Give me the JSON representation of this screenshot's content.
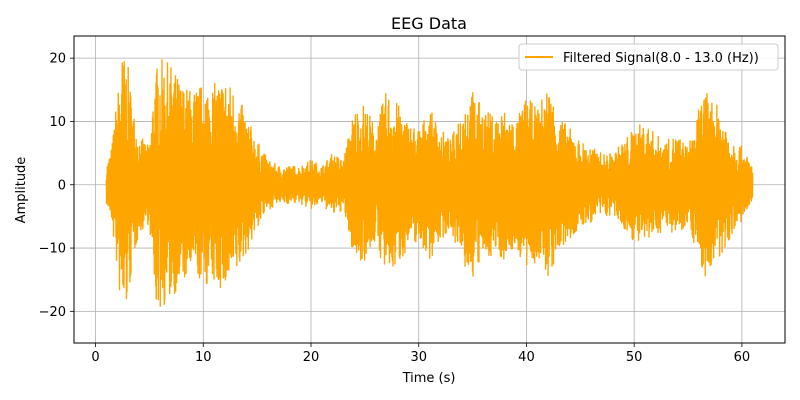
{
  "chart_data": {
    "type": "line",
    "title": "EEG Data",
    "xlabel": "Time (s)",
    "ylabel": "Amplitude",
    "xlim": [
      -2,
      64
    ],
    "ylim": [
      -25,
      23.5
    ],
    "xticks": [
      0,
      10,
      20,
      30,
      40,
      50,
      60
    ],
    "yticks": [
      -20,
      -10,
      0,
      10,
      20
    ],
    "xtick_labels": [
      "0",
      "10",
      "20",
      "30",
      "40",
      "50",
      "60"
    ],
    "ytick_labels": [
      "−20",
      "−10",
      "0",
      "10",
      "20"
    ],
    "grid": true,
    "legend_position": "upper-right",
    "series": [
      {
        "name": "Filtered Signal(8.0 - 13.0 (Hz))",
        "color": "#FFA500",
        "x_start": 1.0,
        "x_end": 61.0,
        "envelope": {
          "t": [
            1.0,
            1.5,
            2.0,
            2.5,
            3.0,
            3.5,
            4.0,
            5.0,
            5.5,
            6.0,
            7.0,
            8.0,
            9.0,
            10.0,
            11.0,
            12.0,
            13.0,
            14.0,
            15.0,
            16.0,
            17.0,
            18.0,
            19.0,
            20.0,
            21.0,
            22.0,
            23.0,
            24.0,
            25.0,
            26.0,
            27.0,
            28.0,
            29.0,
            30.0,
            31.0,
            32.0,
            33.0,
            34.0,
            35.0,
            36.0,
            37.0,
            38.0,
            39.0,
            40.0,
            41.0,
            42.0,
            43.0,
            44.0,
            45.0,
            46.0,
            47.0,
            48.0,
            49.0,
            50.0,
            51.0,
            52.0,
            53.0,
            54.0,
            55.0,
            56.0,
            56.5,
            57.0,
            58.0,
            59.0,
            60.0,
            61.0
          ],
          "upper": [
            3,
            6,
            14,
            21,
            19,
            12,
            8,
            6,
            18,
            20,
            19,
            16,
            15,
            16,
            16,
            17,
            15,
            11,
            7,
            4,
            3,
            3,
            3,
            4,
            3,
            5,
            4,
            12,
            13,
            9,
            15,
            13,
            10,
            9,
            12,
            9,
            7,
            13,
            15,
            12,
            11,
            12,
            10,
            14,
            12,
            16,
            11,
            9,
            7,
            6,
            5,
            5,
            7,
            9,
            10,
            8,
            7,
            8,
            6,
            12,
            15,
            14,
            12,
            8,
            6,
            3
          ],
          "lower": [
            -3,
            -6,
            -14,
            -22,
            -19,
            -12,
            -8,
            -6,
            -19,
            -20,
            -18,
            -16,
            -14,
            -16,
            -16,
            -17,
            -15,
            -11,
            -7,
            -4,
            -3,
            -3,
            -3,
            -4,
            -3,
            -5,
            -4,
            -12,
            -12,
            -9,
            -15,
            -13,
            -10,
            -9,
            -12,
            -9,
            -7,
            -13,
            -15,
            -12,
            -11,
            -12,
            -10,
            -14,
            -12,
            -15,
            -11,
            -9,
            -7,
            -6,
            -5,
            -5,
            -7,
            -9,
            -10,
            -8,
            -7,
            -8,
            -6,
            -12,
            -15,
            -14,
            -12,
            -8,
            -6,
            -3
          ]
        }
      }
    ]
  }
}
